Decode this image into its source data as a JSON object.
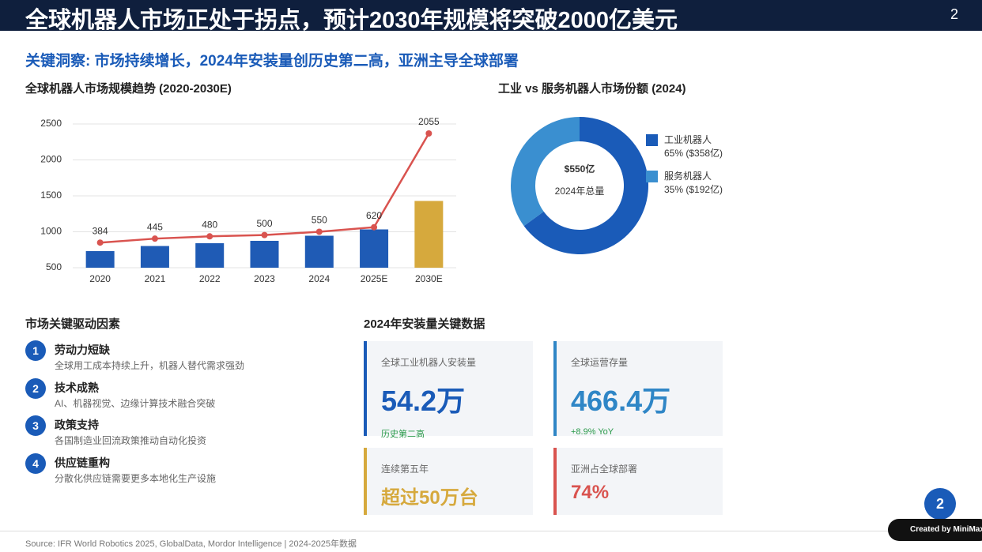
{
  "header": {
    "title": "全球机器人市场正处于拐点，预计2030年规模将突破2000亿美元",
    "page": "2"
  },
  "subtitle": "关键洞察: 市场持续增长，2024年安装量创历史第二高，亚洲主导全球部署",
  "chart_data": [
    {
      "type": "bar",
      "title": "全球机器人市场规模趋势 (2020-2030E)",
      "categories": [
        "2020",
        "2021",
        "2022",
        "2023",
        "2024",
        "2025E",
        "2030E"
      ],
      "series": [
        {
          "type": "bar",
          "values": [
            731,
            802,
            841,
            874,
            945,
            1033,
            1429
          ],
          "colors": [
            "#1f5bb5",
            "#1f5bb5",
            "#1f5bb5",
            "#1f5bb5",
            "#1f5bb5",
            "#1f5bb5",
            "#d6a93d"
          ]
        },
        {
          "type": "line",
          "axis": "y2",
          "color": "#d9534f",
          "values": [
            384,
            445,
            480,
            500,
            550,
            620,
            2055
          ]
        }
      ],
      "ylim": [
        500,
        2500
      ],
      "yticks": [
        500,
        1000,
        1500,
        2000,
        2500
      ],
      "y2lim": [
        0,
        2200
      ],
      "grid": true
    },
    {
      "type": "pie",
      "title": "工业 vs 服务机器人市场份额 (2024)",
      "categories": [
        "工业机器人",
        "服务机器人"
      ],
      "values": [
        65,
        35
      ],
      "value_labels": [
        "65% ($358亿)",
        "35% ($192亿)"
      ],
      "colors": [
        "#1a5bb8",
        "#3a8fd0"
      ],
      "center_value": "$550亿",
      "center_label": "2024年总量"
    }
  ],
  "drivers": {
    "title": "市场关键驱动因素",
    "items": [
      {
        "num": "1",
        "title": "劳动力短缺",
        "desc": "全球用工成本持续上升，机器人替代需求强劲"
      },
      {
        "num": "2",
        "title": "技术成熟",
        "desc": "AI、机器视觉、边缘计算技术融合突破"
      },
      {
        "num": "3",
        "title": "政策支持",
        "desc": "各国制造业回流政策推动自动化投资"
      },
      {
        "num": "4",
        "title": "供应链重构",
        "desc": "分散化供应链需要更多本地化生产设施"
      }
    ]
  },
  "stats": {
    "title": "2024年安装量关键数据",
    "cards": [
      {
        "label": "全球工业机器人安装量",
        "value": "54.2万",
        "note": "历史第二高"
      },
      {
        "label": "全球运营存量",
        "value": "466.4万",
        "note": "+8.9% YoY"
      },
      {
        "label": "连续第五年",
        "value": "超过50万台"
      },
      {
        "label": "亚洲占全球部署",
        "value": "74%"
      }
    ]
  },
  "footer": {
    "source": "Source: IFR World Robotics 2025, GlobalData, Mordor Intelligence | 2024-2025年数据",
    "badge": "2",
    "credit": "Created by MiniMax Ag"
  }
}
